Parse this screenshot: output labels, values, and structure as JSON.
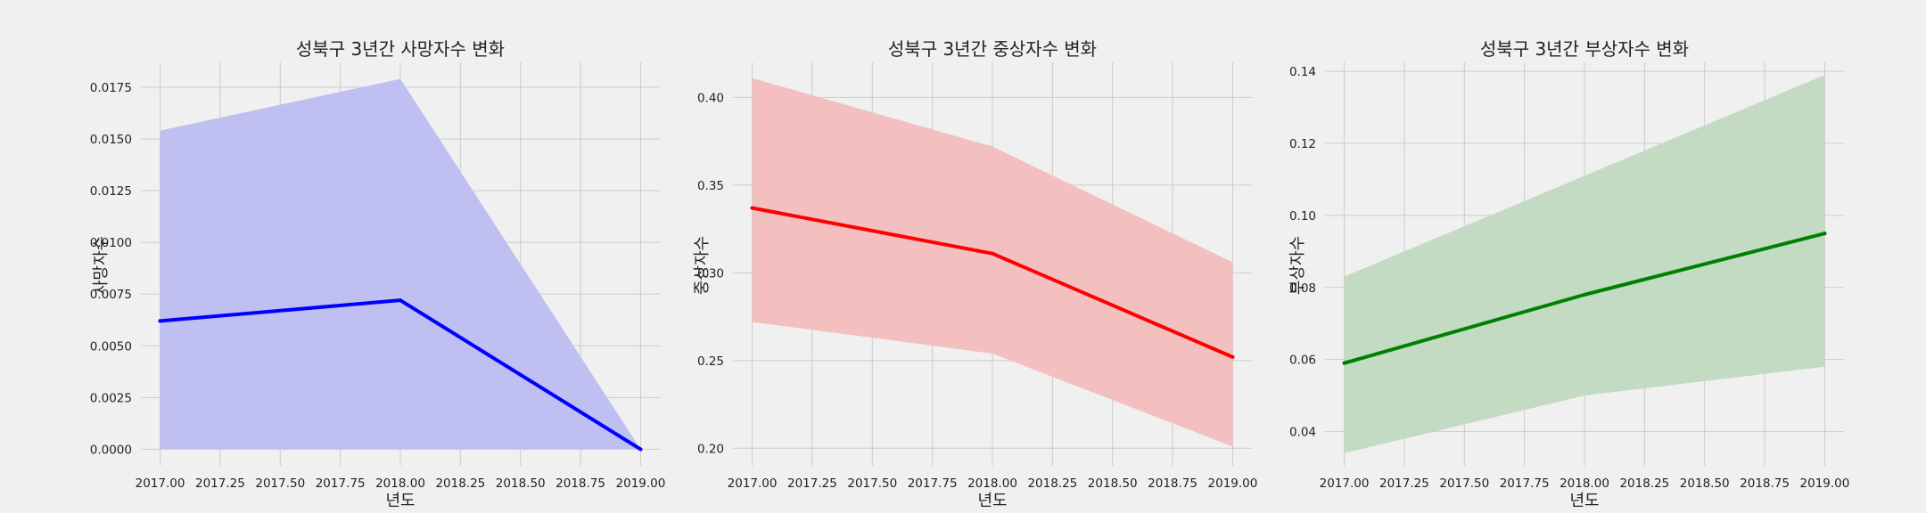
{
  "chart_data": [
    {
      "type": "line",
      "title": "성북구 3년간 사망자수 변화",
      "xlabel": "년도",
      "ylabel": "사망자수",
      "x": [
        2017.0,
        2018.0,
        2019.0
      ],
      "series": [
        {
          "values": [
            0.0062,
            0.0072,
            0.0
          ],
          "ci_lower": [
            0.0,
            0.0,
            0.0
          ],
          "ci_upper": [
            0.0154,
            0.0179,
            0.0
          ],
          "color": "#0000ff",
          "band_color": "#bfbff2"
        }
      ],
      "xlim": [
        2016.92,
        2019.08
      ],
      "ylim": [
        -0.0008,
        0.0187
      ],
      "xticks": [
        2017.0,
        2017.25,
        2017.5,
        2017.75,
        2018.0,
        2018.25,
        2018.5,
        2018.75,
        2019.0
      ],
      "xticklabels": [
        "2017.00",
        "2017.25",
        "2017.50",
        "2017.75",
        "2018.00",
        "2018.25",
        "2018.50",
        "2018.75",
        "2019.00"
      ],
      "yticks": [
        0.0,
        0.0025,
        0.005,
        0.0075,
        0.01,
        0.0125,
        0.015,
        0.0175
      ],
      "yticklabels": [
        "0.0000",
        "0.0025",
        "0.0050",
        "0.0075",
        "0.0100",
        "0.0125",
        "0.0150",
        "0.0175"
      ],
      "grid": true
    },
    {
      "type": "line",
      "title": "성북구 3년간 중상자수 변화",
      "xlabel": "년도",
      "ylabel": "중상자수",
      "x": [
        2017.0,
        2018.0,
        2019.0
      ],
      "series": [
        {
          "values": [
            0.337,
            0.311,
            0.252
          ],
          "ci_lower": [
            0.272,
            0.254,
            0.201
          ],
          "ci_upper": [
            0.411,
            0.372,
            0.306
          ],
          "color": "#ff0000",
          "band_color": "#f3bfbf"
        }
      ],
      "xlim": [
        2016.92,
        2019.08
      ],
      "ylim": [
        0.19,
        0.42
      ],
      "xticks": [
        2017.0,
        2017.25,
        2017.5,
        2017.75,
        2018.0,
        2018.25,
        2018.5,
        2018.75,
        2019.0
      ],
      "xticklabels": [
        "2017.00",
        "2017.25",
        "2017.50",
        "2017.75",
        "2018.00",
        "2018.25",
        "2018.50",
        "2018.75",
        "2019.00"
      ],
      "yticks": [
        0.2,
        0.25,
        0.3,
        0.35,
        0.4
      ],
      "yticklabels": [
        "0.20",
        "0.25",
        "0.30",
        "0.35",
        "0.40"
      ],
      "grid": true
    },
    {
      "type": "line",
      "title": "성북구 3년간 부상자수 변화",
      "xlabel": "년도",
      "ylabel": "부상자수",
      "x": [
        2017.0,
        2018.0,
        2019.0
      ],
      "series": [
        {
          "values": [
            0.059,
            0.078,
            0.095
          ],
          "ci_lower": [
            0.034,
            0.05,
            0.058
          ],
          "ci_upper": [
            0.083,
            0.111,
            0.139
          ],
          "color": "#008000",
          "band_color": "#c2dbc2"
        }
      ],
      "xlim": [
        2016.92,
        2019.08
      ],
      "ylim": [
        0.0305,
        0.1425
      ],
      "xticks": [
        2017.0,
        2017.25,
        2017.5,
        2017.75,
        2018.0,
        2018.25,
        2018.5,
        2018.75,
        2019.0
      ],
      "xticklabels": [
        "2017.00",
        "2017.25",
        "2017.50",
        "2017.75",
        "2018.00",
        "2018.25",
        "2018.50",
        "2018.75",
        "2019.00"
      ],
      "yticks": [
        0.04,
        0.06,
        0.08,
        0.1,
        0.12,
        0.14
      ],
      "yticklabels": [
        "0.04",
        "0.06",
        "0.08",
        "0.10",
        "0.12",
        "0.14"
      ],
      "grid": true
    }
  ]
}
